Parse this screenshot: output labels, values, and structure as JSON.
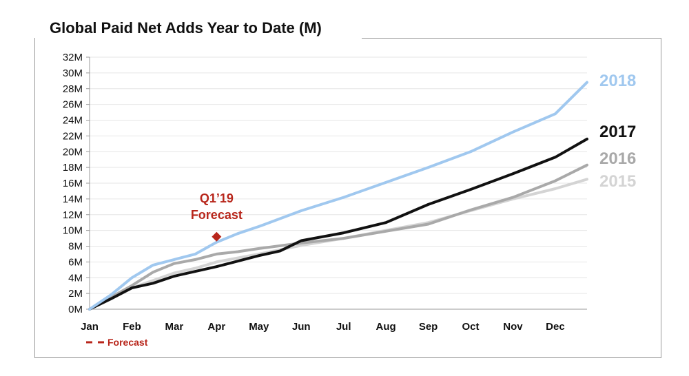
{
  "title": "Global Paid Net Adds Year to Date (M)",
  "chart_data": {
    "type": "line",
    "title": "Global Paid Net Adds Year to Date (M)",
    "xlabel": "",
    "ylabel": "",
    "x_ticks": [
      "Jan",
      "Feb",
      "Mar",
      "Apr",
      "May",
      "Jun",
      "Jul",
      "Aug",
      "Sep",
      "Oct",
      "Nov",
      "Dec"
    ],
    "y_ticks": [
      "0M",
      "2M",
      "4M",
      "6M",
      "8M",
      "10M",
      "12M",
      "14M",
      "16M",
      "18M",
      "20M",
      "22M",
      "24M",
      "26M",
      "28M",
      "30M",
      "32M"
    ],
    "ylim": [
      0,
      32
    ],
    "x_month_domain": [
      0,
      11.75
    ],
    "grid": true,
    "series": [
      {
        "name": "2015",
        "color": "#d4d4d4",
        "x": [
          0,
          1,
          2,
          2.5,
          3,
          4,
          5,
          6,
          7,
          8,
          9,
          10,
          11,
          11.75
        ],
        "y": [
          0,
          2.7,
          4.6,
          5.2,
          6.0,
          7.0,
          8.1,
          9.0,
          10.0,
          11.0,
          12.5,
          14.0,
          15.3,
          16.5
        ]
      },
      {
        "name": "2016",
        "color": "#a9a9a9",
        "x": [
          0,
          0.5,
          1,
          1.5,
          2,
          2.5,
          3,
          3.5,
          4,
          5,
          6,
          7,
          8,
          9,
          10,
          11,
          11.75
        ],
        "y": [
          0,
          1.5,
          3.0,
          4.7,
          5.8,
          6.3,
          7.0,
          7.3,
          7.7,
          8.4,
          9.0,
          9.9,
          10.8,
          12.6,
          14.2,
          16.3,
          18.3
        ]
      },
      {
        "name": "2017",
        "color": "#111111",
        "x": [
          0,
          0.5,
          1,
          1.5,
          2,
          2.5,
          3,
          3.5,
          4,
          4.5,
          5,
          6,
          7,
          8,
          9,
          10,
          11,
          11.75
        ],
        "y": [
          0,
          1.3,
          2.7,
          3.3,
          4.2,
          4.8,
          5.4,
          6.1,
          6.8,
          7.4,
          8.7,
          9.7,
          11.0,
          13.3,
          15.2,
          17.2,
          19.3,
          21.6
        ]
      },
      {
        "name": "2018",
        "color": "#a0c8ef",
        "x": [
          0,
          0.5,
          1,
          1.5,
          2,
          2.5,
          3,
          3.5,
          4,
          5,
          6,
          7,
          8,
          9,
          10,
          11,
          11.75
        ],
        "y": [
          0,
          1.8,
          4.0,
          5.6,
          6.3,
          7.0,
          8.5,
          9.6,
          10.5,
          12.5,
          14.2,
          16.1,
          18.0,
          20.0,
          22.5,
          24.8,
          28.8
        ]
      }
    ],
    "annotations": [
      {
        "text_line1": "Q1’19",
        "text_line2": "Forecast",
        "x": 3.0,
        "y": 9.2,
        "marker": "diamond",
        "color": "#b8261b"
      }
    ],
    "legend": {
      "label": "Forecast",
      "color": "#b8261b",
      "placement": "bottom-left"
    }
  }
}
